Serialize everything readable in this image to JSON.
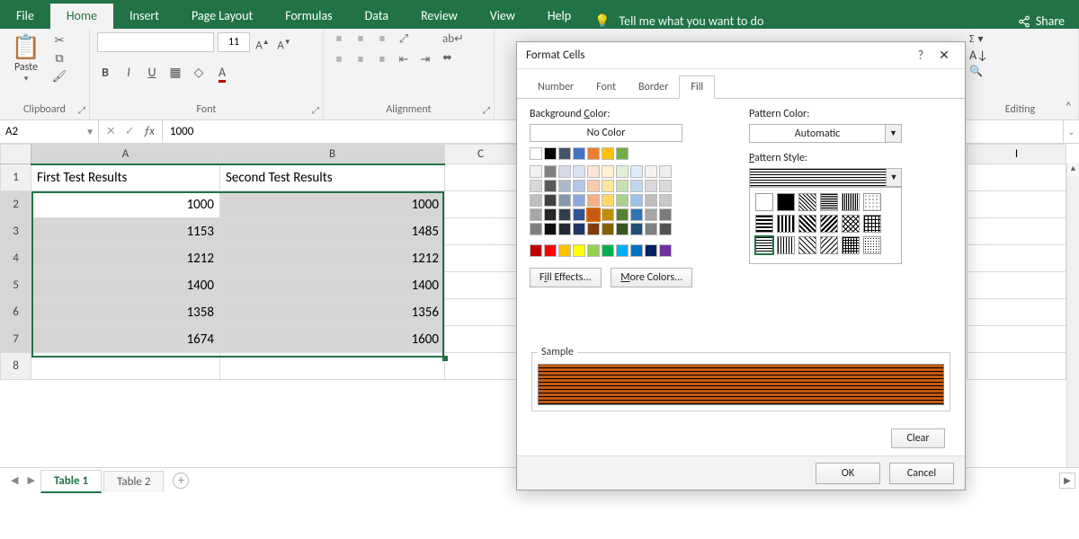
{
  "ribbon": {
    "tabs": [
      "File",
      "Home",
      "Insert",
      "Page Layout",
      "Formulas",
      "Data",
      "Review",
      "View",
      "Help"
    ],
    "active_tab": "Home",
    "tell_me": "Tell me what you want to do",
    "share": "Share"
  },
  "clipboard": {
    "paste": "Paste",
    "label": "Clipboard"
  },
  "font": {
    "size": "11",
    "label": "Font"
  },
  "alignment": {
    "label": "Alignment"
  },
  "editing": {
    "label": "Editing"
  },
  "namebox": "A2",
  "formula": "1000",
  "columns": [
    "A",
    "B",
    "C"
  ],
  "right_column": "I",
  "headers": {
    "A": "First Test Results",
    "B": "Second Test Results"
  },
  "data": {
    "A": [
      1000,
      1153,
      1212,
      1400,
      1358,
      1674
    ],
    "B": [
      1000,
      1485,
      1212,
      1400,
      1356,
      1600
    ]
  },
  "row_count": 8,
  "selection": {
    "top_row": 2,
    "bottom_row": 7,
    "left_col": "A",
    "right_col": "B",
    "active": "A2"
  },
  "sheets": {
    "tabs": [
      "Table 1",
      "Table 2"
    ],
    "active": "Table 1"
  },
  "dialog": {
    "title": "Format Cells",
    "tabs": [
      "Number",
      "Font",
      "Border",
      "Fill"
    ],
    "active_tab": "Fill",
    "bg_label": "Background Color:",
    "no_color": "No Color",
    "bg_label_u": "C",
    "fill_effects": "Fill Effects...",
    "more_colors": "More Colors...",
    "pattern_color_label": "Pattern Color:",
    "pattern_color_u": "A",
    "pattern_color_value": "Automatic",
    "pattern_style_label": "Pattern Style:",
    "pattern_style_u": "P",
    "sample_label": "Sample",
    "clear": "Clear",
    "ok": "OK",
    "cancel": "Cancel",
    "theme_row1": [
      "#ffffff",
      "#000000",
      "#44546a",
      "#4472c4",
      "#ed7d31",
      "#ffc000",
      "#70ad47"
    ],
    "theme_grid": [
      [
        "#f2f2f2",
        "#7f7f7f",
        "#d6dce5",
        "#d9e1f2",
        "#fce4d6",
        "#fff2cc",
        "#e2efda",
        "#ddebf7",
        "#f2f2f2",
        "#ededed"
      ],
      [
        "#d9d9d9",
        "#595959",
        "#acb9ca",
        "#b4c6e7",
        "#f8cbad",
        "#ffe699",
        "#c6e0b4",
        "#bdd7ee",
        "#d9d9d9",
        "#dbdbdb"
      ],
      [
        "#bfbfbf",
        "#404040",
        "#8497b0",
        "#8ea9db",
        "#f4b084",
        "#ffd966",
        "#a9d08e",
        "#9bc2e6",
        "#bfbfbf",
        "#c9c9c9"
      ],
      [
        "#a6a6a6",
        "#262626",
        "#333f4f",
        "#305496",
        "#c65911",
        "#bf8f00",
        "#548235",
        "#2f75b5",
        "#a6a6a6",
        "#7b7b7b"
      ],
      [
        "#808080",
        "#0d0d0d",
        "#222b35",
        "#203764",
        "#833c0c",
        "#806000",
        "#375623",
        "#1f4e78",
        "#808080",
        "#525252"
      ]
    ],
    "selected_theme": [
      3,
      4
    ],
    "standard": [
      "#c00000",
      "#ff0000",
      "#ffc000",
      "#ffff00",
      "#92d050",
      "#00b050",
      "#00b0f0",
      "#0070c0",
      "#002060",
      "#7030a0"
    ],
    "sample_fill": "#c65911"
  }
}
